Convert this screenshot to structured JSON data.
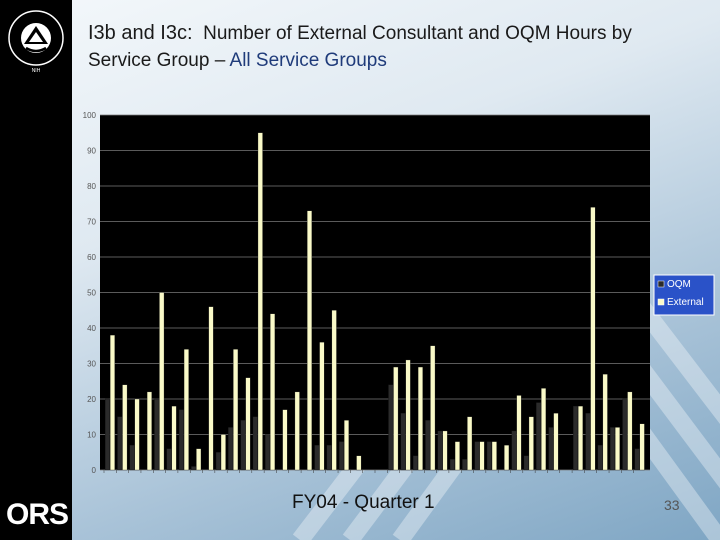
{
  "slide": {
    "title_prefix": "I3b and I3c:",
    "title_main": "Number of External Consultant and OQM Hours by Service Group –",
    "title_highlight": "All Service Groups",
    "footer": "FY04 - Quarter 1",
    "page_number": "33",
    "org_logo_text": "ORS",
    "seal_text": "NATIONAL INSTITUTES OF HEALTH"
  },
  "colors": {
    "oqm": "#2b2b2b",
    "external": "#fafac8",
    "sidebar": "#000000"
  },
  "chart_data": {
    "type": "bar",
    "ylim": [
      0,
      100
    ],
    "yticks": [
      0,
      10,
      20,
      30,
      40,
      50,
      60,
      70,
      80,
      90,
      100
    ],
    "grid": true,
    "legend_position": "right",
    "series": [
      {
        "name": "OQM",
        "values": [
          20,
          15,
          7,
          0,
          20,
          6,
          17,
          1,
          0,
          5,
          12,
          14,
          15,
          10,
          0,
          0,
          0,
          7,
          7,
          8,
          0,
          0,
          0,
          24,
          16,
          4,
          14,
          11,
          3,
          3,
          8,
          8,
          0,
          11,
          4,
          19,
          12,
          0,
          18,
          16,
          7,
          12,
          20,
          6
        ]
      },
      {
        "name": "External",
        "values": [
          38,
          24,
          20,
          22,
          50,
          18,
          34,
          6,
          46,
          10,
          34,
          26,
          95,
          44,
          17,
          22,
          73,
          36,
          45,
          14,
          4,
          0,
          0,
          29,
          31,
          29,
          35,
          11,
          8,
          15,
          8,
          8,
          7,
          21,
          15,
          23,
          16,
          0,
          18,
          74,
          27,
          12,
          22,
          13
        ]
      }
    ]
  }
}
